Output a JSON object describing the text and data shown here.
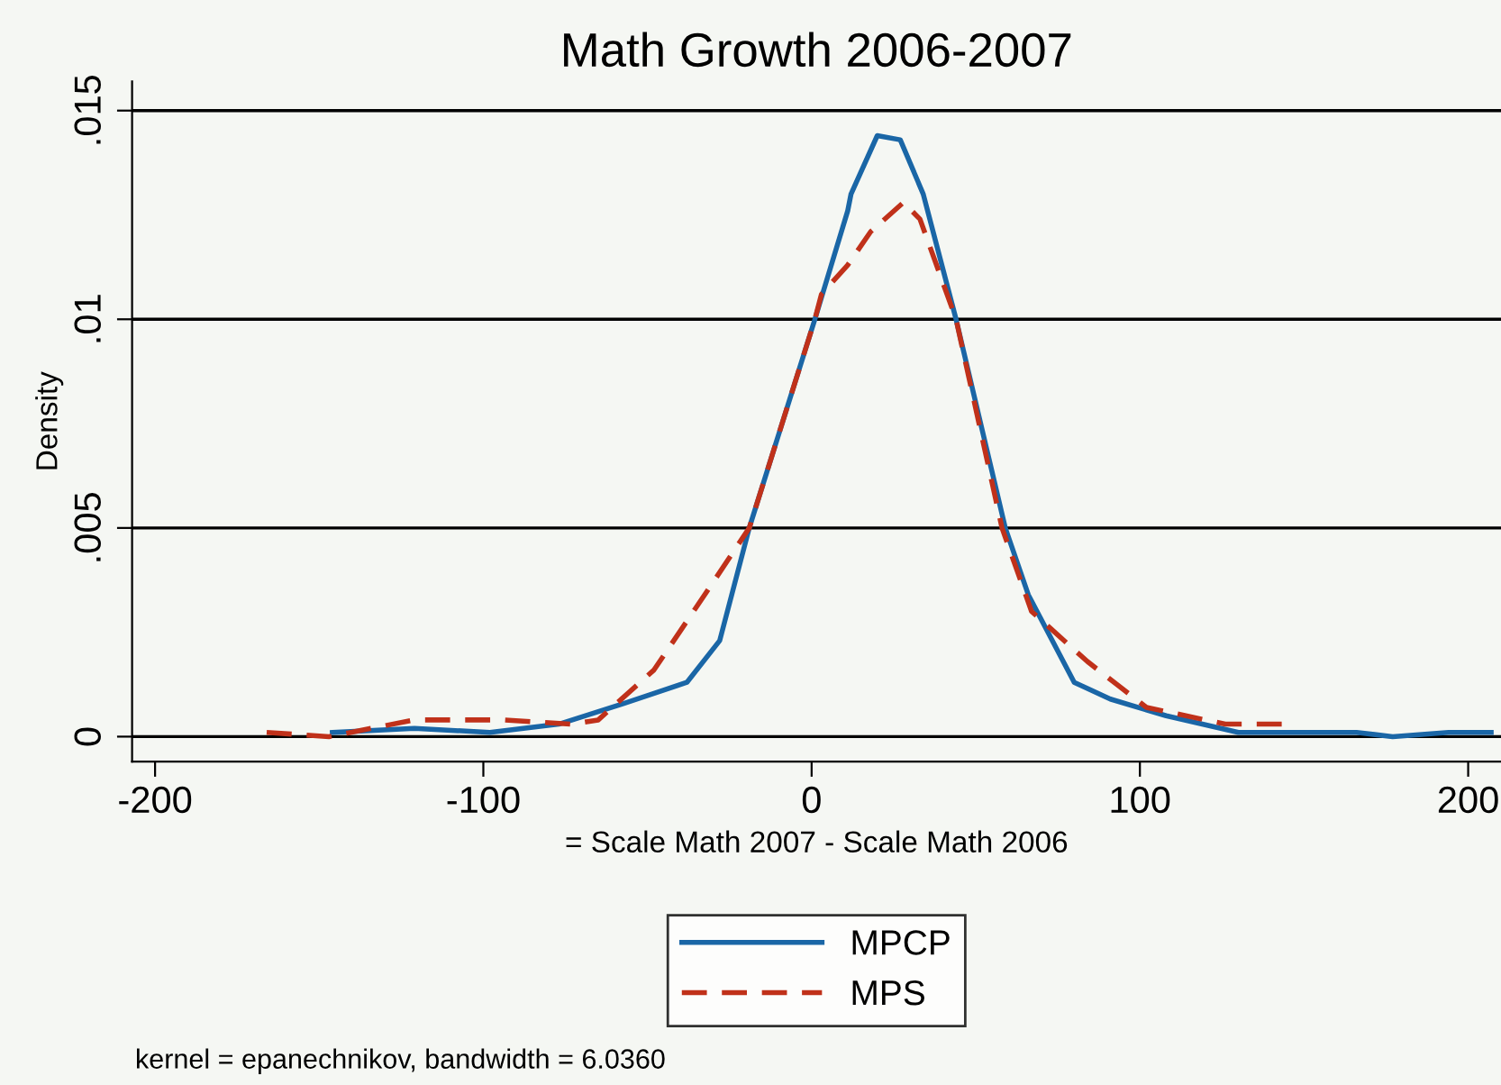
{
  "chart_data": {
    "type": "line",
    "title": "Math Growth 2006-2007",
    "xlabel": "= Scale Math 2007 - Scale Math 2006",
    "ylabel": "Density",
    "annotations": [
      "kernel = epanechnikov, bandwidth = 6.0360"
    ],
    "series": [
      {
        "name": "MPCP",
        "color": "#1a66a6",
        "line_style": "solid",
        "x": [
          -146,
          -121,
          -98,
          -77,
          -57,
          -38,
          -28,
          -19,
          1,
          11,
          12,
          20,
          27,
          34,
          44,
          59,
          66,
          80,
          91,
          108,
          130,
          166,
          177,
          194,
          207
        ],
        "values": [
          0.0001,
          0.0002,
          0.0001,
          0.0003,
          0.0008,
          0.0013,
          0.0023,
          0.005,
          0.01,
          0.0126,
          0.013,
          0.0144,
          0.0143,
          0.013,
          0.01,
          0.005,
          0.0034,
          0.0013,
          0.0009,
          0.0005,
          0.0001,
          0.0001,
          0.0,
          0.0001,
          0.0001
        ]
      },
      {
        "name": "MPS",
        "color": "#c0311a",
        "line_style": "dashed",
        "x": [
          -166,
          -147,
          -121,
          -94,
          -73,
          -65,
          -48,
          -30,
          -19,
          1,
          3,
          11,
          18,
          28,
          33,
          44,
          58,
          67,
          84,
          102,
          126,
          144
        ],
        "values": [
          0.0001,
          0.0,
          0.0004,
          0.0004,
          0.0003,
          0.0004,
          0.0016,
          0.0037,
          0.005,
          0.01,
          0.0106,
          0.0113,
          0.0121,
          0.0128,
          0.0124,
          0.01,
          0.005,
          0.003,
          0.0018,
          0.0007,
          0.0003,
          0.0003
        ]
      }
    ],
    "xlim": [
      -207,
      210
    ],
    "ylim": [
      -0.0006,
      0.0157
    ],
    "xticks": [
      -200,
      -100,
      0,
      100,
      200
    ],
    "yticks": [
      {
        "value": 0,
        "label": "0"
      },
      {
        "value": 0.005,
        "label": ".005"
      },
      {
        "value": 0.01,
        "label": ".01"
      },
      {
        "value": 0.015,
        "label": ".015"
      }
    ],
    "grid": "y",
    "legend": "bottom",
    "marker": "none"
  }
}
